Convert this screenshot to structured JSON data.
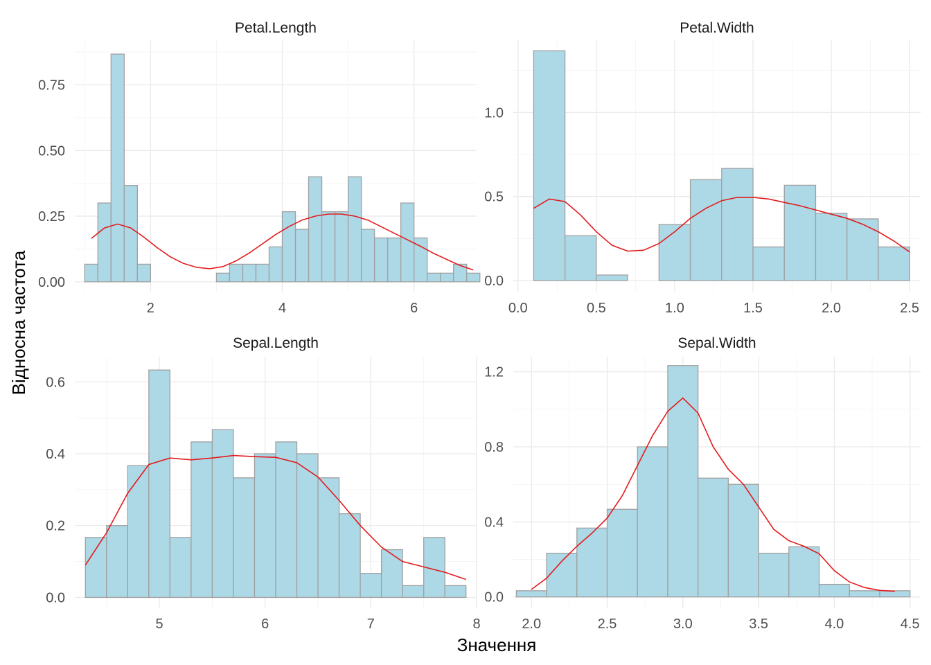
{
  "figure": {
    "xlabel": "Значення",
    "ylabel": "Відносна частота",
    "bar_fill": "#add8e6",
    "bar_stroke": "#a0a0a0",
    "density_color": "#e31a1c",
    "grid_color": "#ebebeb",
    "grid": true
  },
  "chart_data": [
    {
      "type": "bar",
      "title": "Petal.Length",
      "xlim": [
        0.85,
        6.95
      ],
      "ylim": [
        -0.04,
        0.92
      ],
      "xticks": [
        2,
        4,
        6
      ],
      "xtick_labels": [
        "2",
        "4",
        "6"
      ],
      "yticks": [
        0,
        0.25,
        0.5,
        0.75
      ],
      "ytick_labels": [
        "0.00",
        "0.25",
        "0.50",
        "0.75"
      ],
      "bin_start": 1.0,
      "bin_width": 0.2,
      "values": [
        0.067,
        0.3,
        0.867,
        0.367,
        0.067,
        0,
        0,
        0,
        0,
        0,
        0.033,
        0.067,
        0.067,
        0.067,
        0.133,
        0.267,
        0.2,
        0.4,
        0.267,
        0.267,
        0.4,
        0.2,
        0.167,
        0.167,
        0.3,
        0.167,
        0.033,
        0.033,
        0.067,
        0.033
      ],
      "density": {
        "x": [
          1.1,
          1.3,
          1.5,
          1.7,
          1.9,
          2.1,
          2.3,
          2.5,
          2.7,
          2.9,
          3.1,
          3.3,
          3.5,
          3.7,
          3.9,
          4.1,
          4.3,
          4.5,
          4.7,
          4.9,
          5.1,
          5.3,
          5.5,
          5.7,
          5.9,
          6.1,
          6.3,
          6.5,
          6.7,
          6.9
        ],
        "y": [
          0.165,
          0.205,
          0.22,
          0.205,
          0.17,
          0.13,
          0.095,
          0.07,
          0.055,
          0.05,
          0.058,
          0.08,
          0.11,
          0.145,
          0.18,
          0.21,
          0.235,
          0.25,
          0.258,
          0.258,
          0.25,
          0.235,
          0.21,
          0.185,
          0.16,
          0.135,
          0.108,
          0.085,
          0.062,
          0.045
        ]
      }
    },
    {
      "type": "bar",
      "title": "Petal.Width",
      "xlim": [
        -0.03,
        2.57
      ],
      "ylim": [
        -0.07,
        1.43
      ],
      "xticks": [
        0,
        0.5,
        1,
        1.5,
        2,
        2.5
      ],
      "xtick_labels": [
        "0.0",
        "0.5",
        "1.0",
        "1.5",
        "2.0",
        "2.5"
      ],
      "yticks": [
        0,
        0.5,
        1
      ],
      "ytick_labels": [
        "0.0",
        "0.5",
        "1.0"
      ],
      "bin_start": 0.1,
      "bin_width": 0.2,
      "values": [
        1.367,
        0.267,
        0.033,
        0,
        0.333,
        0.6,
        0.667,
        0.2,
        0.567,
        0.4,
        0.367,
        0.2
      ],
      "density": {
        "x": [
          0.1,
          0.2,
          0.3,
          0.4,
          0.5,
          0.6,
          0.7,
          0.8,
          0.9,
          1.0,
          1.1,
          1.2,
          1.3,
          1.4,
          1.5,
          1.6,
          1.7,
          1.8,
          1.9,
          2.0,
          2.1,
          2.2,
          2.3,
          2.4,
          2.5
        ],
        "y": [
          0.43,
          0.485,
          0.47,
          0.39,
          0.29,
          0.21,
          0.175,
          0.18,
          0.22,
          0.29,
          0.37,
          0.43,
          0.475,
          0.495,
          0.495,
          0.485,
          0.465,
          0.445,
          0.42,
          0.395,
          0.37,
          0.335,
          0.29,
          0.235,
          0.17
        ]
      }
    },
    {
      "type": "bar",
      "title": "Sepal.Length",
      "xlim": [
        4.2,
        8.0
      ],
      "ylim": [
        -0.03,
        0.67
      ],
      "xticks": [
        5,
        6,
        7,
        8
      ],
      "xtick_labels": [
        "5",
        "6",
        "7",
        "8"
      ],
      "yticks": [
        0,
        0.2,
        0.4,
        0.6
      ],
      "ytick_labels": [
        "0.0",
        "0.2",
        "0.4",
        "0.6"
      ],
      "bin_start": 4.3,
      "bin_width": 0.2,
      "values": [
        0.167,
        0.2,
        0.367,
        0.633,
        0.167,
        0.433,
        0.467,
        0.333,
        0.4,
        0.433,
        0.4,
        0.333,
        0.233,
        0.067,
        0.133,
        0.033,
        0.167,
        0.033
      ],
      "density": {
        "x": [
          4.3,
          4.5,
          4.7,
          4.9,
          5.1,
          5.3,
          5.5,
          5.7,
          5.9,
          6.1,
          6.3,
          6.5,
          6.7,
          6.9,
          7.1,
          7.3,
          7.5,
          7.7,
          7.9
        ],
        "y": [
          0.09,
          0.18,
          0.29,
          0.37,
          0.388,
          0.383,
          0.388,
          0.395,
          0.392,
          0.39,
          0.375,
          0.335,
          0.27,
          0.2,
          0.14,
          0.1,
          0.085,
          0.07,
          0.05
        ]
      }
    },
    {
      "type": "bar",
      "title": "Sepal.Width",
      "xlim": [
        1.88,
        4.57
      ],
      "ylim": [
        -0.06,
        1.28
      ],
      "xticks": [
        2,
        2.5,
        3,
        3.5,
        4,
        4.5
      ],
      "xtick_labels": [
        "2.0",
        "2.5",
        "3.0",
        "3.5",
        "4.0",
        "4.5"
      ],
      "yticks": [
        0,
        0.4,
        0.8,
        1.2
      ],
      "ytick_labels": [
        "0.0",
        "0.4",
        "0.8",
        "1.2"
      ],
      "bin_start": 1.9,
      "bin_width": 0.2,
      "values": [
        0.033,
        0.233,
        0.367,
        0.467,
        0.8,
        1.233,
        0.633,
        0.6,
        0.233,
        0.267,
        0.067,
        0.033,
        0.033
      ],
      "density": {
        "x": [
          2.0,
          2.1,
          2.2,
          2.3,
          2.4,
          2.5,
          2.6,
          2.7,
          2.8,
          2.9,
          3.0,
          3.1,
          3.2,
          3.3,
          3.4,
          3.5,
          3.6,
          3.7,
          3.8,
          3.9,
          4.0,
          4.1,
          4.2,
          4.3,
          4.4
        ],
        "y": [
          0.04,
          0.1,
          0.19,
          0.27,
          0.34,
          0.42,
          0.54,
          0.7,
          0.86,
          0.99,
          1.06,
          0.98,
          0.8,
          0.68,
          0.6,
          0.48,
          0.36,
          0.3,
          0.27,
          0.23,
          0.14,
          0.08,
          0.05,
          0.035,
          0.03
        ]
      }
    }
  ]
}
